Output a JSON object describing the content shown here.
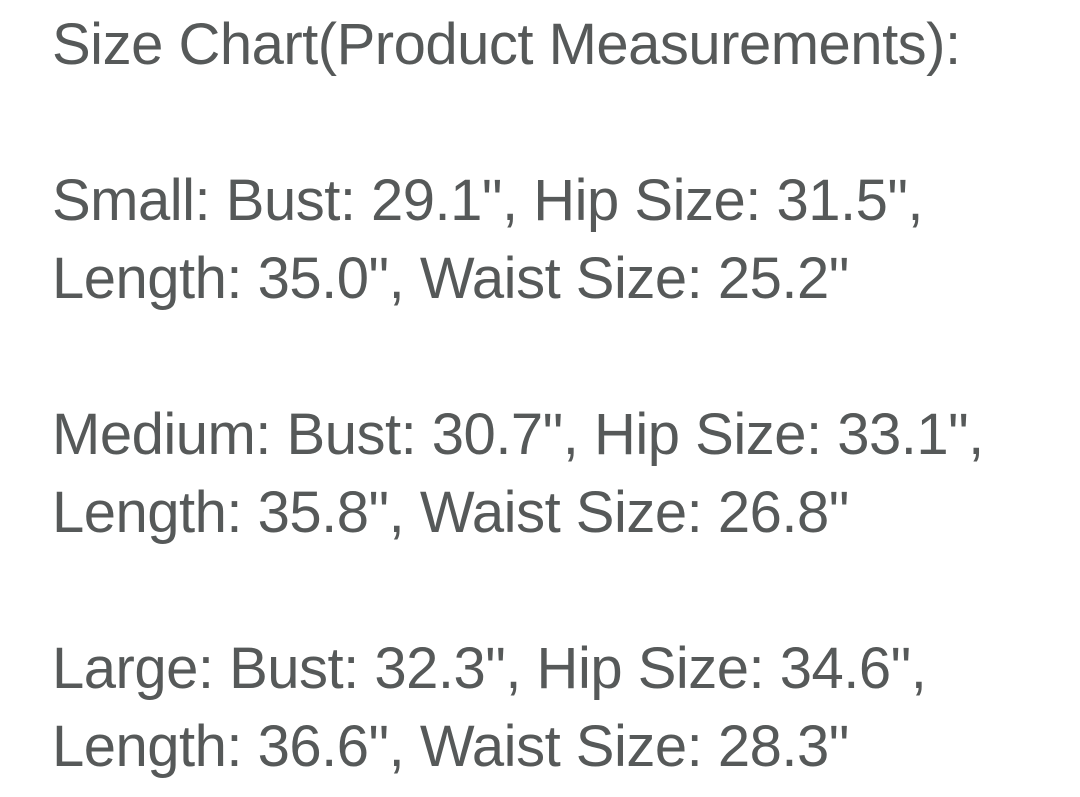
{
  "page": {
    "background_color": "#ffffff",
    "text_color": "#565959"
  },
  "size_chart": {
    "title": "Size Chart(Product Measurements):",
    "entries": [
      {
        "size": "Small",
        "bust": "29.1\"",
        "hip_size": "31.5\"",
        "length": "35.0\"",
        "waist_size": "25.2\"",
        "line1": "Small: Bust: 29.1\", Hip Size: 31.5\",",
        "line2": "Length: 35.0\", Waist Size: 25.2\""
      },
      {
        "size": "Medium",
        "bust": "30.7\"",
        "hip_size": "33.1\"",
        "length": "35.8\"",
        "waist_size": "26.8\"",
        "line1": "Medium: Bust: 30.7\", Hip Size: 33.1\",",
        "line2": "Length: 35.8\", Waist Size: 26.8\""
      },
      {
        "size": "Large",
        "bust": "32.3\"",
        "hip_size": "34.6\"",
        "length": "36.6\"",
        "waist_size": "28.3\"",
        "line1": "Large: Bust: 32.3\", Hip Size: 34.6\",",
        "line2": "Length: 36.6\", Waist Size: 28.3\""
      }
    ]
  }
}
